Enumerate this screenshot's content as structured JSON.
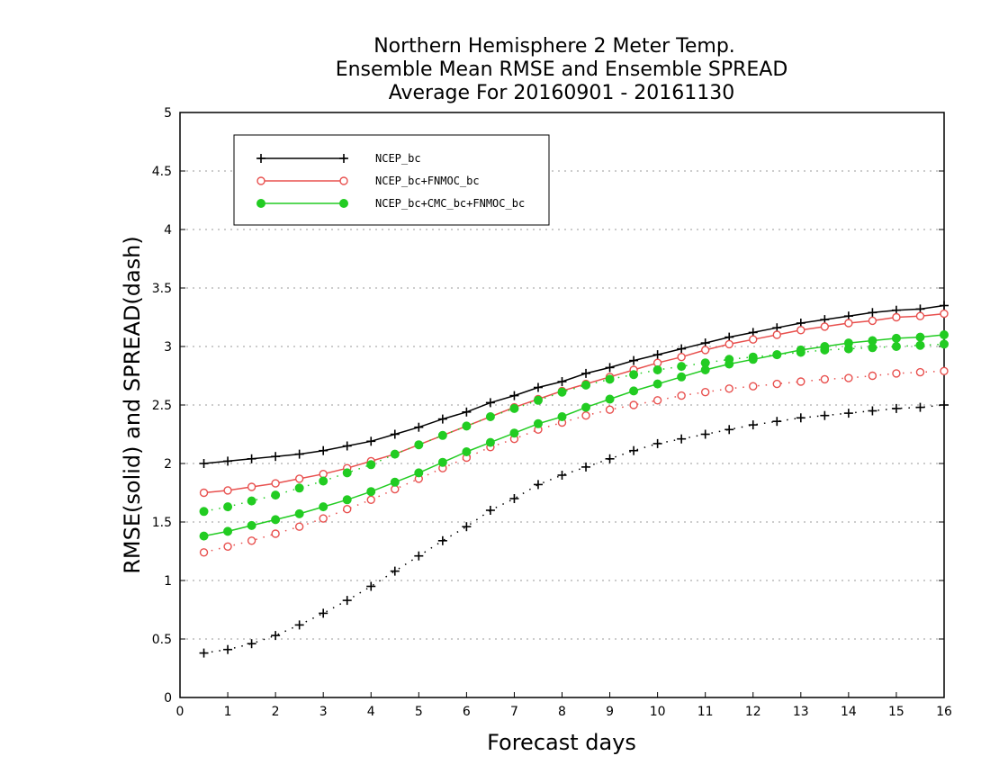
{
  "chart_data": {
    "type": "line",
    "title": [
      "Northern Hemisphere 2 Meter Temp.",
      "Ensemble Mean RMSE and Ensemble SPREAD",
      "Average For 20160901 - 20161130"
    ],
    "xlabel": "Forecast days",
    "ylabel": "RMSE(solid) and SPREAD(dash)",
    "xlim": [
      0,
      16
    ],
    "ylim": [
      0,
      5
    ],
    "xticks": [
      0,
      1,
      2,
      3,
      4,
      5,
      6,
      7,
      8,
      9,
      10,
      11,
      12,
      13,
      14,
      15,
      16
    ],
    "yticks": [
      0,
      0.5,
      1,
      1.5,
      2,
      2.5,
      3,
      3.5,
      4,
      4.5,
      5
    ],
    "ytick_labels": [
      "0",
      "0.5",
      "1",
      "1.5",
      "2",
      "2.5",
      "3",
      "3.5",
      "4",
      "4.5",
      "5"
    ],
    "grid": "horizontal dotted",
    "legend_position": "top-left",
    "x": [
      0.5,
      1,
      1.5,
      2,
      2.5,
      3,
      3.5,
      4,
      4.5,
      5,
      5.5,
      6,
      6.5,
      7,
      7.5,
      8,
      8.5,
      9,
      9.5,
      10,
      10.5,
      11,
      11.5,
      12,
      12.5,
      13,
      13.5,
      14,
      14.5,
      15,
      15.5,
      16
    ],
    "series": [
      {
        "name": "NCEP_bc",
        "color": "#000000",
        "marker": "plus",
        "rmse": [
          2.0,
          2.02,
          2.04,
          2.06,
          2.08,
          2.11,
          2.15,
          2.19,
          2.25,
          2.31,
          2.38,
          2.44,
          2.52,
          2.58,
          2.65,
          2.7,
          2.77,
          2.82,
          2.88,
          2.93,
          2.98,
          3.03,
          3.08,
          3.12,
          3.16,
          3.2,
          3.23,
          3.26,
          3.29,
          3.31,
          3.32,
          3.35
        ],
        "spread": [
          0.38,
          0.41,
          0.46,
          0.53,
          0.62,
          0.72,
          0.83,
          0.95,
          1.08,
          1.21,
          1.34,
          1.46,
          1.6,
          1.7,
          1.82,
          1.9,
          1.97,
          2.04,
          2.11,
          2.17,
          2.21,
          2.25,
          2.29,
          2.33,
          2.36,
          2.39,
          2.41,
          2.43,
          2.45,
          2.47,
          2.48,
          2.5
        ]
      },
      {
        "name": "NCEP_bc+FNMOC_bc",
        "color": "#e8504e",
        "marker": "open-circle",
        "rmse": [
          1.75,
          1.77,
          1.8,
          1.83,
          1.87,
          1.91,
          1.96,
          2.02,
          2.08,
          2.16,
          2.24,
          2.32,
          2.4,
          2.48,
          2.55,
          2.62,
          2.68,
          2.74,
          2.8,
          2.86,
          2.91,
          2.97,
          3.02,
          3.06,
          3.1,
          3.14,
          3.17,
          3.2,
          3.22,
          3.25,
          3.26,
          3.28
        ],
        "spread": [
          1.24,
          1.29,
          1.34,
          1.4,
          1.46,
          1.53,
          1.61,
          1.69,
          1.78,
          1.87,
          1.96,
          2.05,
          2.14,
          2.21,
          2.29,
          2.35,
          2.41,
          2.46,
          2.5,
          2.54,
          2.58,
          2.61,
          2.64,
          2.66,
          2.68,
          2.7,
          2.72,
          2.73,
          2.75,
          2.77,
          2.78,
          2.79
        ]
      },
      {
        "name": "NCEP_bc+CMC_bc+FNMOC_bc",
        "color": "#22cc22",
        "marker": "filled-circle",
        "rmse": [
          1.38,
          1.42,
          1.47,
          1.52,
          1.57,
          1.63,
          1.69,
          1.76,
          1.84,
          1.92,
          2.01,
          2.1,
          2.18,
          2.26,
          2.34,
          2.4,
          2.48,
          2.55,
          2.62,
          2.68,
          2.74,
          2.8,
          2.85,
          2.89,
          2.93,
          2.97,
          3.0,
          3.03,
          3.05,
          3.07,
          3.08,
          3.1
        ],
        "spread": [
          1.59,
          1.63,
          1.68,
          1.73,
          1.79,
          1.85,
          1.92,
          1.99,
          2.08,
          2.16,
          2.24,
          2.32,
          2.4,
          2.47,
          2.54,
          2.61,
          2.67,
          2.72,
          2.76,
          2.8,
          2.83,
          2.86,
          2.89,
          2.91,
          2.93,
          2.95,
          2.97,
          2.98,
          2.99,
          3.0,
          3.01,
          3.02
        ]
      }
    ]
  }
}
